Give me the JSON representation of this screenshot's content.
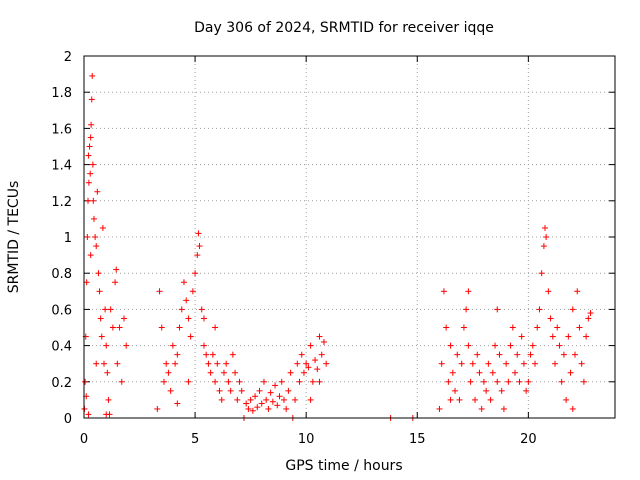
{
  "chart_data": {
    "type": "scatter",
    "title": "Day 306 of 2024, SRMTID for receiver iqqe",
    "xlabel": "GPS time / hours",
    "ylabel": "SRMTID / TECUs",
    "xlim": [
      0,
      23.9
    ],
    "ylim": [
      0,
      2
    ],
    "xticks": [
      0,
      5,
      10,
      15,
      20
    ],
    "yticks": [
      0,
      0.2,
      0.4,
      0.6,
      0.8,
      1,
      1.2,
      1.4,
      1.6,
      1.8,
      2
    ],
    "ytick_labels": [
      "0",
      "0.2",
      "0.4",
      "0.6",
      "0.8",
      "1",
      "1.2",
      "1.4",
      "1.6",
      "1.8",
      "2"
    ],
    "grid": true,
    "marker": "+",
    "color": "#ff0000",
    "series": [
      {
        "name": "SRMTID",
        "points": [
          [
            0.02,
            0.05
          ],
          [
            0.05,
            0.2
          ],
          [
            0.08,
            0.45
          ],
          [
            0.1,
            0.12
          ],
          [
            0.12,
            0.75
          ],
          [
            0.15,
            1.0
          ],
          [
            0.18,
            1.2
          ],
          [
            0.2,
            1.45
          ],
          [
            0.22,
            1.3
          ],
          [
            0.25,
            1.5
          ],
          [
            0.28,
            1.35
          ],
          [
            0.3,
            1.55
          ],
          [
            0.32,
            1.62
          ],
          [
            0.35,
            1.76
          ],
          [
            0.37,
            1.89
          ],
          [
            0.4,
            1.4
          ],
          [
            0.42,
            1.2
          ],
          [
            0.45,
            1.1
          ],
          [
            0.5,
            1.0
          ],
          [
            0.55,
            0.95
          ],
          [
            0.6,
            1.25
          ],
          [
            0.65,
            0.8
          ],
          [
            0.7,
            0.7
          ],
          [
            0.75,
            0.55
          ],
          [
            0.8,
            0.45
          ],
          [
            0.85,
            1.05
          ],
          [
            0.9,
            0.3
          ],
          [
            0.95,
            0.6
          ],
          [
            1.0,
            0.4
          ],
          [
            1.05,
            0.25
          ],
          [
            1.1,
            0.1
          ],
          [
            1.15,
            0.02
          ],
          [
            1.2,
            0.6
          ],
          [
            1.3,
            0.5
          ],
          [
            1.4,
            0.75
          ],
          [
            1.45,
            0.82
          ],
          [
            1.5,
            0.3
          ],
          [
            1.6,
            0.5
          ],
          [
            1.7,
            0.2
          ],
          [
            1.8,
            0.55
          ],
          [
            1.9,
            0.4
          ],
          [
            0.3,
            0.9
          ],
          [
            0.55,
            0.3
          ],
          [
            1.0,
            0.02
          ],
          [
            0.2,
            0.02
          ],
          [
            3.3,
            0.05
          ],
          [
            3.4,
            0.7
          ],
          [
            3.5,
            0.5
          ],
          [
            3.6,
            0.2
          ],
          [
            3.7,
            0.3
          ],
          [
            3.8,
            0.25
          ],
          [
            3.9,
            0.15
          ],
          [
            4.0,
            0.4
          ],
          [
            4.1,
            0.3
          ],
          [
            4.2,
            0.35
          ],
          [
            4.3,
            0.5
          ],
          [
            4.4,
            0.6
          ],
          [
            4.5,
            0.75
          ],
          [
            4.6,
            0.65
          ],
          [
            4.7,
            0.55
          ],
          [
            4.8,
            0.45
          ],
          [
            4.9,
            0.7
          ],
          [
            5.0,
            0.8
          ],
          [
            5.1,
            0.9
          ],
          [
            5.15,
            1.02
          ],
          [
            5.2,
            0.95
          ],
          [
            5.3,
            0.6
          ],
          [
            5.4,
            0.4
          ],
          [
            5.5,
            0.35
          ],
          [
            5.6,
            0.3
          ],
          [
            5.7,
            0.25
          ],
          [
            5.8,
            0.35
          ],
          [
            5.9,
            0.2
          ],
          [
            6.0,
            0.3
          ],
          [
            6.1,
            0.15
          ],
          [
            6.2,
            0.1
          ],
          [
            6.3,
            0.25
          ],
          [
            6.4,
            0.3
          ],
          [
            6.5,
            0.2
          ],
          [
            6.6,
            0.15
          ],
          [
            6.7,
            0.35
          ],
          [
            6.8,
            0.25
          ],
          [
            6.9,
            0.1
          ],
          [
            7.0,
            0.2
          ],
          [
            7.1,
            0.15
          ],
          [
            4.2,
            0.08
          ],
          [
            4.7,
            0.2
          ],
          [
            5.4,
            0.55
          ],
          [
            5.9,
            0.5
          ],
          [
            7.2,
            0.0
          ],
          [
            7.3,
            0.08
          ],
          [
            7.4,
            0.05
          ],
          [
            7.5,
            0.1
          ],
          [
            7.6,
            0.04
          ],
          [
            7.7,
            0.12
          ],
          [
            7.8,
            0.06
          ],
          [
            7.9,
            0.15
          ],
          [
            8.0,
            0.08
          ],
          [
            8.1,
            0.2
          ],
          [
            8.2,
            0.1
          ],
          [
            8.3,
            0.05
          ],
          [
            8.4,
            0.14
          ],
          [
            8.5,
            0.09
          ],
          [
            8.6,
            0.18
          ],
          [
            8.7,
            0.07
          ],
          [
            8.8,
            0.12
          ],
          [
            8.9,
            0.2
          ],
          [
            9.0,
            0.1
          ],
          [
            9.1,
            0.05
          ],
          [
            9.2,
            0.15
          ],
          [
            9.3,
            0.25
          ],
          [
            9.4,
            0.0
          ],
          [
            9.5,
            0.1
          ],
          [
            9.6,
            0.3
          ],
          [
            9.7,
            0.2
          ],
          [
            9.8,
            0.35
          ],
          [
            9.9,
            0.25
          ],
          [
            10.0,
            0.3
          ],
          [
            10.1,
            0.28
          ],
          [
            10.2,
            0.4
          ],
          [
            10.3,
            0.2
          ],
          [
            10.4,
            0.32
          ],
          [
            10.5,
            0.27
          ],
          [
            10.6,
            0.45
          ],
          [
            10.7,
            0.35
          ],
          [
            10.8,
            0.42
          ],
          [
            10.9,
            0.3
          ],
          [
            10.2,
            0.1
          ],
          [
            10.6,
            0.2
          ],
          [
            13.8,
            0.0
          ],
          [
            14.8,
            0.0
          ],
          [
            16.0,
            0.05
          ],
          [
            16.1,
            0.3
          ],
          [
            16.2,
            0.7
          ],
          [
            16.3,
            0.5
          ],
          [
            16.4,
            0.2
          ],
          [
            16.5,
            0.4
          ],
          [
            16.6,
            0.25
          ],
          [
            16.7,
            0.15
          ],
          [
            16.8,
            0.35
          ],
          [
            16.9,
            0.1
          ],
          [
            17.0,
            0.3
          ],
          [
            17.1,
            0.5
          ],
          [
            17.2,
            0.6
          ],
          [
            17.3,
            0.4
          ],
          [
            17.4,
            0.2
          ],
          [
            17.5,
            0.3
          ],
          [
            17.6,
            0.1
          ],
          [
            17.7,
            0.35
          ],
          [
            17.8,
            0.25
          ],
          [
            17.9,
            0.05
          ],
          [
            18.0,
            0.2
          ],
          [
            18.1,
            0.15
          ],
          [
            18.2,
            0.3
          ],
          [
            18.3,
            0.1
          ],
          [
            18.4,
            0.25
          ],
          [
            18.5,
            0.4
          ],
          [
            18.6,
            0.2
          ],
          [
            18.7,
            0.35
          ],
          [
            18.8,
            0.15
          ],
          [
            18.9,
            0.05
          ],
          [
            19.0,
            0.3
          ],
          [
            19.1,
            0.2
          ],
          [
            19.2,
            0.4
          ],
          [
            19.3,
            0.5
          ],
          [
            19.4,
            0.25
          ],
          [
            19.5,
            0.35
          ],
          [
            19.6,
            0.2
          ],
          [
            19.7,
            0.45
          ],
          [
            19.8,
            0.3
          ],
          [
            19.9,
            0.15
          ],
          [
            20.0,
            0.2
          ],
          [
            20.1,
            0.35
          ],
          [
            20.2,
            0.4
          ],
          [
            20.3,
            0.3
          ],
          [
            20.4,
            0.5
          ],
          [
            20.5,
            0.6
          ],
          [
            20.6,
            0.8
          ],
          [
            20.7,
            0.95
          ],
          [
            20.75,
            1.05
          ],
          [
            20.8,
            1.0
          ],
          [
            20.9,
            0.7
          ],
          [
            21.0,
            0.55
          ],
          [
            21.1,
            0.45
          ],
          [
            21.2,
            0.3
          ],
          [
            21.3,
            0.5
          ],
          [
            21.4,
            0.4
          ],
          [
            21.5,
            0.2
          ],
          [
            21.6,
            0.35
          ],
          [
            21.7,
            0.1
          ],
          [
            21.8,
            0.45
          ],
          [
            21.9,
            0.25
          ],
          [
            22.0,
            0.6
          ],
          [
            22.1,
            0.35
          ],
          [
            22.2,
            0.7
          ],
          [
            22.3,
            0.5
          ],
          [
            22.4,
            0.3
          ],
          [
            22.5,
            0.2
          ],
          [
            22.6,
            0.45
          ],
          [
            22.7,
            0.55
          ],
          [
            22.8,
            0.58
          ],
          [
            17.3,
            0.7
          ],
          [
            18.6,
            0.6
          ],
          [
            16.5,
            0.1
          ],
          [
            22.0,
            0.05
          ]
        ]
      }
    ]
  }
}
